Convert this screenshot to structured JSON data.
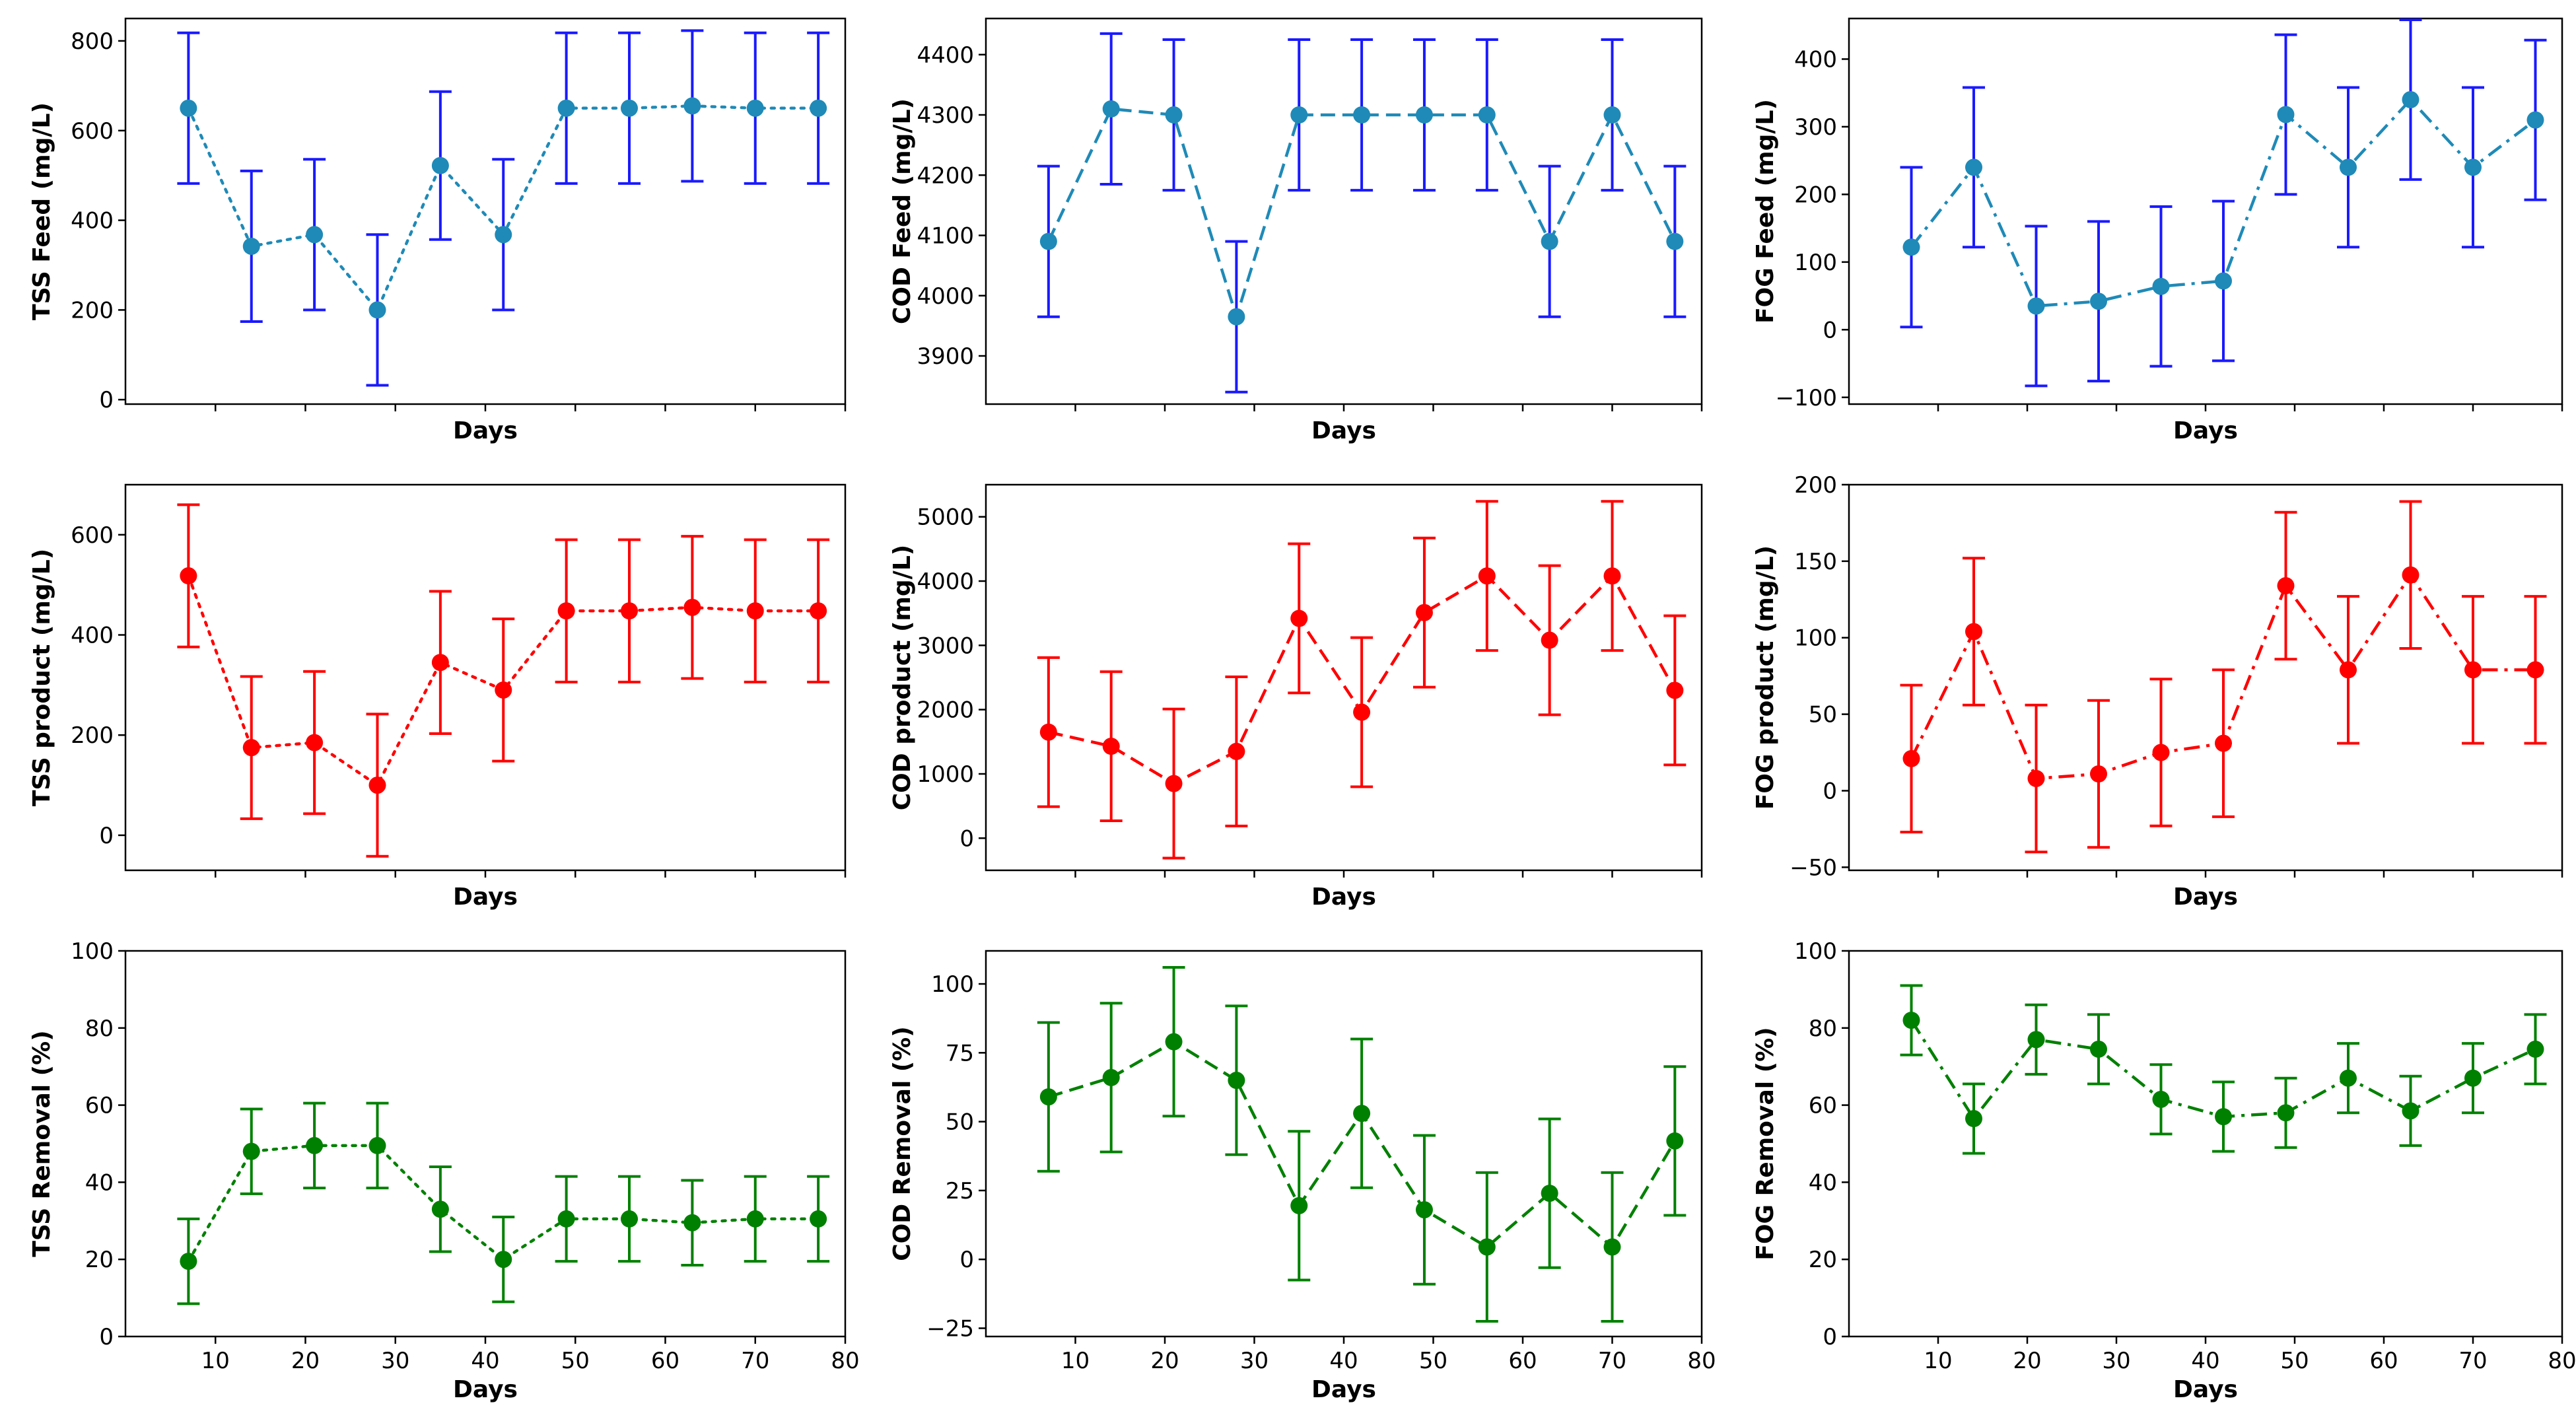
{
  "colors": {
    "feed_line": "#1f8ab7",
    "feed_error": "#1a1aff",
    "product": "#ff0000",
    "removal": "#008000"
  },
  "chart_data": [
    {
      "type": "line",
      "row": "feed",
      "linestyle": "dotted",
      "title": "",
      "xlabel": "Days",
      "ylabel": "TSS Feed (mg/L)",
      "x": [
        7,
        14,
        21,
        28,
        35,
        42,
        49,
        56,
        63,
        70,
        77
      ],
      "values": [
        650,
        342,
        368,
        200,
        522,
        368,
        650,
        650,
        655,
        650,
        650
      ],
      "errors": [
        168,
        168,
        168,
        168,
        165,
        168,
        168,
        168,
        168,
        168,
        168
      ],
      "xlim": [
        0,
        80
      ],
      "ylim": [
        -10,
        850
      ],
      "yticks": [
        0,
        200,
        400,
        600,
        800
      ],
      "xticks": [
        10,
        20,
        30,
        40,
        50,
        60,
        70,
        80
      ],
      "show_xtick_labels": false
    },
    {
      "type": "line",
      "row": "feed",
      "linestyle": "dashed",
      "title": "",
      "xlabel": "Days",
      "ylabel": "COD Feed (mg/L)",
      "x": [
        7,
        14,
        21,
        28,
        35,
        42,
        49,
        56,
        63,
        70,
        77
      ],
      "values": [
        4090,
        4310,
        4300,
        3965,
        4300,
        4300,
        4300,
        4300,
        4090,
        4300,
        4090
      ],
      "errors": [
        125,
        125,
        125,
        125,
        125,
        125,
        125,
        125,
        125,
        125,
        125
      ],
      "xlim": [
        0,
        80
      ],
      "ylim": [
        3820,
        4460
      ],
      "yticks": [
        3900,
        4000,
        4100,
        4200,
        4300,
        4400
      ],
      "xticks": [
        10,
        20,
        30,
        40,
        50,
        60,
        70,
        80
      ],
      "show_xtick_labels": false
    },
    {
      "type": "line",
      "row": "feed",
      "linestyle": "dashdot",
      "title": "",
      "xlabel": "Days",
      "ylabel": "FOG Feed (mg/L)",
      "x": [
        7,
        14,
        21,
        28,
        35,
        42,
        49,
        56,
        63,
        70,
        77
      ],
      "values": [
        122,
        240,
        35,
        42,
        64,
        72,
        318,
        240,
        340,
        240,
        310
      ],
      "errors": [
        118,
        118,
        118,
        118,
        118,
        118,
        118,
        118,
        118,
        118,
        118
      ],
      "xlim": [
        0,
        80
      ],
      "ylim": [
        -110,
        460
      ],
      "yticks": [
        -100,
        0,
        100,
        200,
        300,
        400
      ],
      "xticks": [
        10,
        20,
        30,
        40,
        50,
        60,
        70,
        80
      ],
      "show_xtick_labels": false
    },
    {
      "type": "line",
      "row": "product",
      "linestyle": "dotted",
      "title": "",
      "xlabel": "Days",
      "ylabel": "TSS product (mg/L)",
      "x": [
        7,
        14,
        21,
        28,
        35,
        42,
        49,
        56,
        63,
        70,
        77
      ],
      "values": [
        518,
        175,
        185,
        100,
        345,
        290,
        448,
        448,
        455,
        448,
        448
      ],
      "errors": [
        142,
        142,
        142,
        142,
        142,
        142,
        142,
        142,
        142,
        142,
        142
      ],
      "xlim": [
        0,
        80
      ],
      "ylim": [
        -70,
        700
      ],
      "yticks": [
        0,
        200,
        400,
        600
      ],
      "xticks": [
        10,
        20,
        30,
        40,
        50,
        60,
        70,
        80
      ],
      "show_xtick_labels": false
    },
    {
      "type": "line",
      "row": "product",
      "linestyle": "dashed",
      "title": "",
      "xlabel": "Days",
      "ylabel": "COD product (mg/L)",
      "x": [
        7,
        14,
        21,
        28,
        35,
        42,
        49,
        56,
        63,
        70,
        77
      ],
      "values": [
        1650,
        1430,
        850,
        1350,
        3420,
        1960,
        3510,
        4080,
        3080,
        4080,
        2300
      ],
      "errors": [
        1160,
        1160,
        1160,
        1160,
        1160,
        1160,
        1160,
        1160,
        1160,
        1160,
        1160
      ],
      "xlim": [
        0,
        80
      ],
      "ylim": [
        -500,
        5500
      ],
      "yticks": [
        0,
        1000,
        2000,
        3000,
        4000,
        5000
      ],
      "xticks": [
        10,
        20,
        30,
        40,
        50,
        60,
        70,
        80
      ],
      "show_xtick_labels": false
    },
    {
      "type": "line",
      "row": "product",
      "linestyle": "dashdot",
      "title": "",
      "xlabel": "Days",
      "ylabel": "FOG product (mg/L)",
      "x": [
        7,
        14,
        21,
        28,
        35,
        42,
        49,
        56,
        63,
        70,
        77
      ],
      "values": [
        21,
        104,
        8,
        11,
        25,
        31,
        134,
        79,
        141,
        79,
        79
      ],
      "errors": [
        48,
        48,
        48,
        48,
        48,
        48,
        48,
        48,
        48,
        48,
        48
      ],
      "xlim": [
        0,
        80
      ],
      "ylim": [
        -52,
        200
      ],
      "yticks": [
        -50,
        0,
        50,
        100,
        150,
        200
      ],
      "xticks": [
        10,
        20,
        30,
        40,
        50,
        60,
        70,
        80
      ],
      "show_xtick_labels": false
    },
    {
      "type": "line",
      "row": "removal",
      "linestyle": "dotted",
      "title": "",
      "xlabel": "Days",
      "ylabel": "TSS Removal (%)",
      "x": [
        7,
        14,
        21,
        28,
        35,
        42,
        49,
        56,
        63,
        70,
        77
      ],
      "values": [
        19.5,
        48,
        49.5,
        49.5,
        33,
        20,
        30.5,
        30.5,
        29.5,
        30.5,
        30.5
      ],
      "errors": [
        11,
        11,
        11,
        11,
        11,
        11,
        11,
        11,
        11,
        11,
        11
      ],
      "xlim": [
        0,
        80
      ],
      "ylim": [
        0,
        100
      ],
      "yticks": [
        0,
        20,
        40,
        60,
        80,
        100
      ],
      "xticks": [
        10,
        20,
        30,
        40,
        50,
        60,
        70,
        80
      ],
      "show_xtick_labels": true
    },
    {
      "type": "line",
      "row": "removal",
      "linestyle": "dashed",
      "title": "",
      "xlabel": "Days",
      "ylabel": "COD Removal (%)",
      "x": [
        7,
        14,
        21,
        28,
        35,
        42,
        49,
        56,
        63,
        70,
        77
      ],
      "values": [
        59,
        66,
        79,
        65,
        19.5,
        53,
        18,
        4.5,
        24,
        4.5,
        43
      ],
      "errors": [
        27,
        27,
        27,
        27,
        27,
        27,
        27,
        27,
        27,
        27,
        27
      ],
      "xlim": [
        0,
        80
      ],
      "ylim": [
        -28,
        112
      ],
      "yticks": [
        -25,
        0,
        25,
        50,
        75,
        100
      ],
      "xticks": [
        10,
        20,
        30,
        40,
        50,
        60,
        70,
        80
      ],
      "show_xtick_labels": true
    },
    {
      "type": "line",
      "row": "removal",
      "linestyle": "dashdot",
      "title": "",
      "xlabel": "Days",
      "ylabel": "FOG Removal (%)",
      "x": [
        7,
        14,
        21,
        28,
        35,
        42,
        49,
        56,
        63,
        70,
        77
      ],
      "values": [
        82,
        56.5,
        77,
        74.5,
        61.5,
        57,
        58,
        67,
        58.5,
        67,
        74.5
      ],
      "errors": [
        9,
        9,
        9,
        9,
        9,
        9,
        9,
        9,
        9,
        9,
        9
      ],
      "xlim": [
        0,
        80
      ],
      "ylim": [
        0,
        100
      ],
      "yticks": [
        0,
        20,
        40,
        60,
        80,
        100
      ],
      "xticks": [
        10,
        20,
        30,
        40,
        50,
        60,
        70,
        80
      ],
      "show_xtick_labels": true
    }
  ]
}
